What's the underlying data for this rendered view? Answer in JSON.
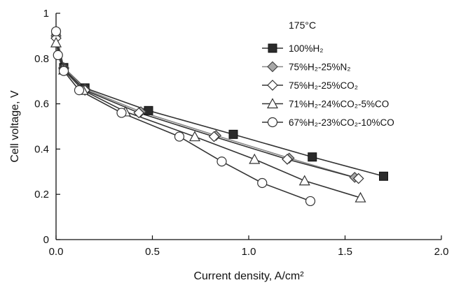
{
  "chart_data": {
    "type": "line",
    "xlabel": "Current density, A/cm²",
    "ylabel": "Cell voltage, V",
    "xlim": [
      0,
      2.0
    ],
    "ylim": [
      0,
      1
    ],
    "xticks": [
      0,
      0.5,
      1,
      1.5,
      2
    ],
    "xtick_labels": [
      "0.0",
      "0.5",
      "1.0",
      "1.5",
      "2.0"
    ],
    "yticks": [
      0,
      0.2,
      0.4,
      0.6,
      0.8,
      1
    ],
    "ytick_labels": [
      "0",
      "0.2",
      "0.4",
      "0.6",
      "0.8",
      "1"
    ],
    "grid": false,
    "legend_title": "175°C",
    "legend_position": "top-right",
    "series": [
      {
        "name": "100%H₂",
        "marker": "square-filled",
        "color": "#333333",
        "x": [
          0.0,
          0.04,
          0.15,
          0.48,
          0.92,
          1.33,
          1.7
        ],
        "y": [
          0.91,
          0.76,
          0.67,
          0.57,
          0.465,
          0.365,
          0.28
        ]
      },
      {
        "name": "75%H₂-25%N₂",
        "marker": "diamond-gray",
        "color": "#888888",
        "x": [
          0.0,
          0.04,
          0.15,
          0.44,
          0.83,
          1.21,
          1.55
        ],
        "y": [
          0.9,
          0.76,
          0.665,
          0.565,
          0.46,
          0.36,
          0.275
        ]
      },
      {
        "name": "75%H₂-25%CO₂",
        "marker": "diamond-open",
        "color": "#333333",
        "x": [
          0.0,
          0.04,
          0.15,
          0.43,
          0.82,
          1.2,
          1.57
        ],
        "y": [
          0.89,
          0.755,
          0.66,
          0.56,
          0.455,
          0.355,
          0.27
        ]
      },
      {
        "name": "71%H₂-24%CO₂-5%CO",
        "marker": "triangle-open",
        "color": "#333333",
        "x": [
          0.0,
          0.04,
          0.14,
          0.36,
          0.72,
          1.03,
          1.29,
          1.58
        ],
        "y": [
          0.87,
          0.75,
          0.66,
          0.565,
          0.455,
          0.355,
          0.26,
          0.185
        ]
      },
      {
        "name": "67%H₂-23%CO₂-10%CO",
        "marker": "circle-open",
        "color": "#333333",
        "x": [
          0.0,
          0.01,
          0.04,
          0.12,
          0.34,
          0.64,
          0.86,
          1.07,
          1.32
        ],
        "y": [
          0.92,
          0.815,
          0.745,
          0.66,
          0.56,
          0.455,
          0.345,
          0.25,
          0.17
        ]
      }
    ]
  }
}
